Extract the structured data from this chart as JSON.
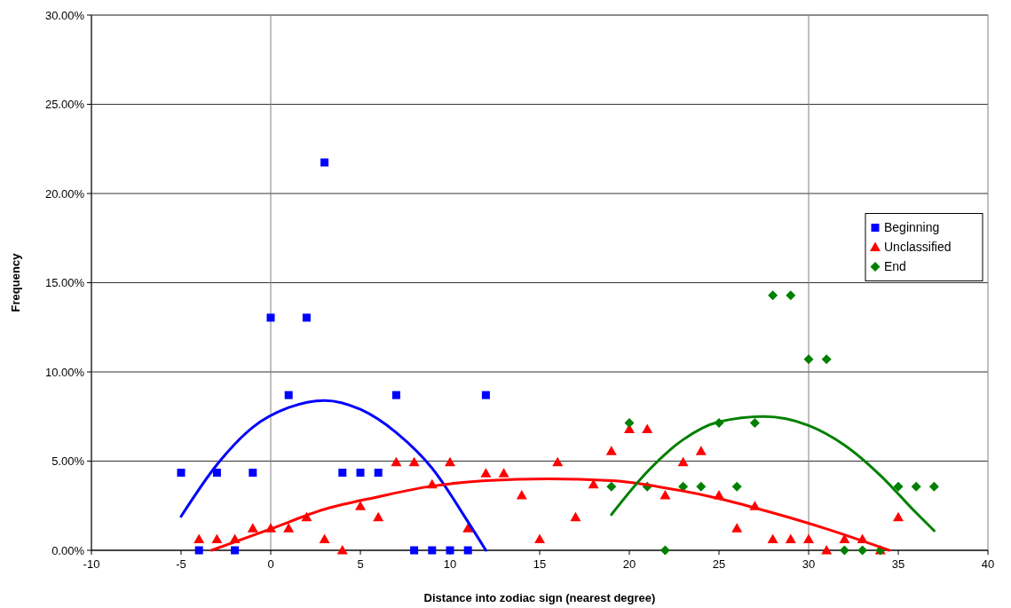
{
  "chart_data": {
    "type": "scatter",
    "xlabel": "Distance into zodiac sign (nearest degree)",
    "ylabel": "Frequency",
    "xlim": [
      -10,
      40
    ],
    "xticks": [
      -10,
      -5,
      0,
      5,
      10,
      15,
      20,
      25,
      30,
      35,
      40
    ],
    "ylim": [
      0,
      30
    ],
    "yticks": [
      {
        "value": 0,
        "label": "0.00%"
      },
      {
        "value": 5,
        "label": "5.00%"
      },
      {
        "value": 10,
        "label": "10.00%"
      },
      {
        "value": 15,
        "label": "15.00%"
      },
      {
        "value": 20,
        "label": "20.00%"
      },
      {
        "value": 25,
        "label": "25.00%"
      },
      {
        "value": 30,
        "label": "30.00%"
      }
    ],
    "grid": "y",
    "legend": "right",
    "ref_lines": [
      {
        "axis": "x",
        "value": 0,
        "label": null,
        "color": "#808080"
      },
      {
        "axis": "x",
        "value": 30,
        "label": null,
        "color": "#808080"
      }
    ],
    "series": [
      {
        "name": "Beginning",
        "marker": "square",
        "color": "#0000ff",
        "x": [
          -5,
          -4,
          -3,
          -2,
          -1,
          0,
          1,
          2,
          3,
          4,
          5,
          6,
          7,
          8,
          9,
          10,
          11,
          12
        ],
        "values": [
          4.35,
          0,
          4.35,
          0,
          4.35,
          13.04,
          8.7,
          13.04,
          21.74,
          4.35,
          4.35,
          4.35,
          8.7,
          0,
          0,
          0,
          0,
          8.7
        ]
      },
      {
        "name": "Unclassified",
        "marker": "triangle",
        "color": "#ff0000",
        "x": [
          -4,
          -3,
          -2,
          -1,
          0,
          1,
          2,
          3,
          4,
          5,
          6,
          7,
          8,
          9,
          10,
          11,
          12,
          13,
          14,
          15,
          16,
          17,
          18,
          19,
          20,
          21,
          22,
          23,
          24,
          25,
          26,
          27,
          28,
          29,
          30,
          31,
          32,
          33,
          34,
          35
        ],
        "values": [
          0.62,
          0.62,
          0.62,
          1.23,
          1.23,
          1.23,
          1.85,
          0.62,
          0,
          2.47,
          1.85,
          4.94,
          4.94,
          3.7,
          4.94,
          1.23,
          4.32,
          4.32,
          3.09,
          0.62,
          4.94,
          1.85,
          3.7,
          5.56,
          6.79,
          6.79,
          3.09,
          4.94,
          5.56,
          3.09,
          1.23,
          2.47,
          0.62,
          0.62,
          0.62,
          0,
          0.62,
          0.62,
          0,
          1.85
        ]
      },
      {
        "name": "End",
        "marker": "diamond",
        "color": "#008000",
        "x": [
          19,
          20,
          21,
          22,
          23,
          24,
          25,
          26,
          27,
          28,
          29,
          30,
          31,
          32,
          33,
          34,
          35,
          36,
          37
        ],
        "values": [
          3.57,
          7.14,
          3.57,
          0,
          3.57,
          3.57,
          7.14,
          3.57,
          7.14,
          14.29,
          14.29,
          10.71,
          10.71,
          0,
          0,
          0,
          3.57,
          3.57,
          3.57
        ]
      },
      {
        "type": "line",
        "marker": "none",
        "line_style": "solid",
        "color": "#0000ff",
        "x": [
          -5,
          -3,
          -1,
          1,
          3,
          5,
          7,
          9,
          11,
          12
        ],
        "values": [
          1.9,
          4.8,
          6.9,
          8.0,
          8.4,
          7.9,
          6.6,
          4.6,
          1.6,
          0
        ]
      },
      {
        "type": "line",
        "marker": "none",
        "line_style": "solid",
        "color": "#ff0000",
        "x": [
          -3.3,
          0,
          3,
          6,
          9,
          12,
          15.5,
          19,
          22,
          25,
          28,
          31,
          34.5
        ],
        "values": [
          0,
          1.2,
          2.3,
          3.0,
          3.6,
          3.9,
          4.0,
          3.9,
          3.5,
          2.9,
          2.1,
          1.2,
          0
        ]
      },
      {
        "type": "line",
        "marker": "none",
        "line_style": "solid",
        "color": "#008000",
        "x": [
          19,
          21,
          23,
          25,
          27.5,
          30,
          32,
          34,
          36,
          37
        ],
        "values": [
          2.0,
          4.4,
          6.2,
          7.2,
          7.5,
          7.0,
          5.9,
          4.2,
          2.1,
          1.1
        ]
      }
    ]
  }
}
